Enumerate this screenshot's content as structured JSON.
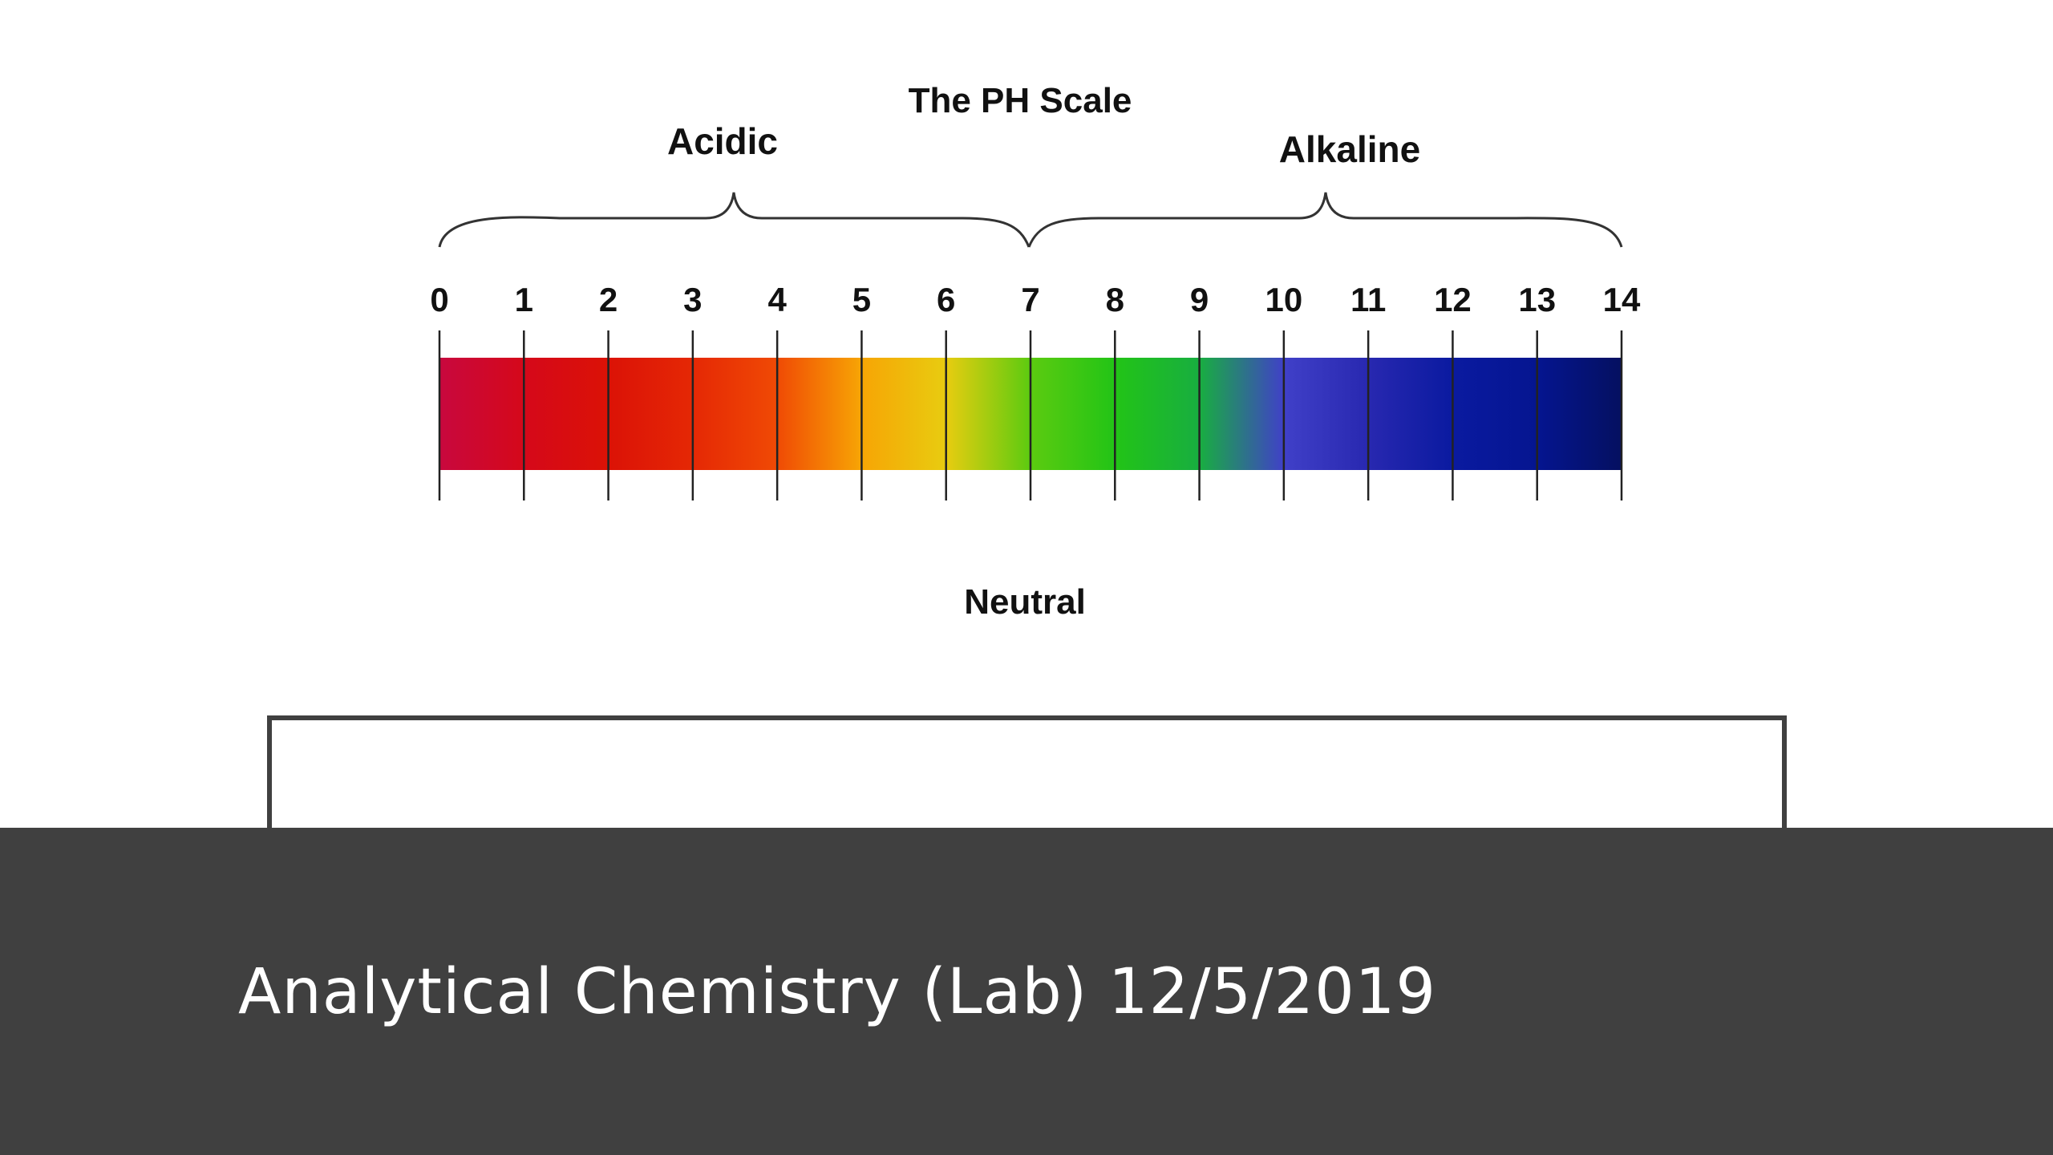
{
  "diagram": {
    "title": "The PH Scale",
    "acidic_label": "Acidic",
    "alkaline_label": "Alkaline",
    "neutral_label": "Neutral",
    "scale_min": 0,
    "scale_max": 14,
    "tick_labels": [
      "0",
      "1",
      "2",
      "3",
      "4",
      "5",
      "6",
      "7",
      "8",
      "9",
      "10",
      "11",
      "12",
      "13",
      "14"
    ],
    "color_stops": [
      {
        "ph": 0,
        "color": "#c8083e"
      },
      {
        "ph": 1,
        "color": "#d5081a"
      },
      {
        "ph": 2,
        "color": "#db1206"
      },
      {
        "ph": 3,
        "color": "#e52805"
      },
      {
        "ph": 4,
        "color": "#f04a05"
      },
      {
        "ph": 5,
        "color": "#f7a505"
      },
      {
        "ph": 6,
        "color": "#e8cc10"
      },
      {
        "ph": 7,
        "color": "#5ccb10"
      },
      {
        "ph": 8,
        "color": "#22c416"
      },
      {
        "ph": 9,
        "color": "#18ae40"
      },
      {
        "ph": 10,
        "color": "#4040c8"
      },
      {
        "ph": 11,
        "color": "#2828b0"
      },
      {
        "ph": 12,
        "color": "#0a1aa0"
      },
      {
        "ph": 13,
        "color": "#051590"
      },
      {
        "ph": 14,
        "color": "#051060"
      }
    ]
  },
  "slide": {
    "subtitle": "Analytical Chemistry (Lab) 12/5/2019",
    "band_color": "#404040"
  }
}
